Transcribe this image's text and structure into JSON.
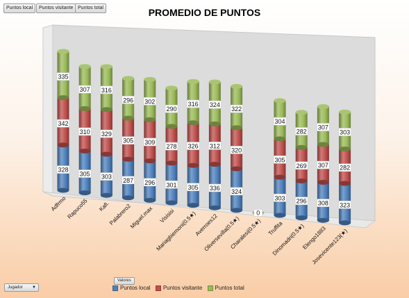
{
  "filter_buttons": [
    "Puntos local",
    "Puntos visitante",
    "Puntos total"
  ],
  "row_field": "Jugador",
  "values_field": "Valores",
  "chart_data": {
    "type": "bar",
    "stacked": true,
    "three_d": true,
    "title": "PROMEDIO DE PUNTOS",
    "categories": [
      "Adfrmo",
      "Rapuco55",
      "Kafi.",
      "Palabrero2",
      "Miguel.max",
      "Visisisi",
      "Mariagbiemoni(0.5★)",
      "Averroes12",
      "Oliversevilla(0.5★)",
      "Charalesi(0.5★)",
      "Truffita",
      "Dinomadri(0.5★)",
      "Elengo1883",
      "Josevicente123(★)"
    ],
    "series": [
      {
        "name": "Puntos local",
        "color": "#4f81bd",
        "values": [
          328,
          305,
          303,
          287,
          296,
          301,
          305,
          336,
          324,
          0,
          303,
          296,
          308,
          323
        ]
      },
      {
        "name": "Puntos visitante",
        "color": "#c0504d",
        "values": [
          342,
          310,
          329,
          305,
          309,
          278,
          326,
          312,
          320,
          0,
          305,
          269,
          307,
          282
        ]
      },
      {
        "name": "Puntos total",
        "color": "#9bbb59",
        "values": [
          335,
          307,
          316,
          296,
          302,
          290,
          316,
          324,
          322,
          0,
          304,
          282,
          307,
          303
        ]
      }
    ],
    "zero_label": "0",
    "legend_position": "bottom",
    "grid": false
  }
}
